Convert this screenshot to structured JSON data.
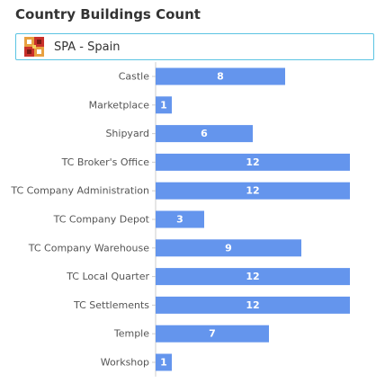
{
  "header": {
    "title": "Country Buildings Count"
  },
  "country_selector": {
    "value": "SPA - Spain",
    "flag_icon": "spain-flag-icon"
  },
  "colors": {
    "bar": "#6495ed",
    "accent": "#5bc4e3"
  },
  "chart_data": {
    "type": "bar",
    "orientation": "horizontal",
    "categories": [
      "Castle",
      "Marketplace",
      "Shipyard",
      "TC Broker's Office",
      "TC Company Administration",
      "TC Company Depot",
      "TC Company Warehouse",
      "TC Local Quarter",
      "TC Settlements",
      "Temple",
      "Workshop"
    ],
    "values": [
      8,
      1,
      6,
      12,
      12,
      3,
      9,
      12,
      12,
      7,
      1
    ],
    "xlim": [
      0,
      12
    ],
    "grid": false,
    "legend": "none",
    "data_labels": "inside"
  }
}
